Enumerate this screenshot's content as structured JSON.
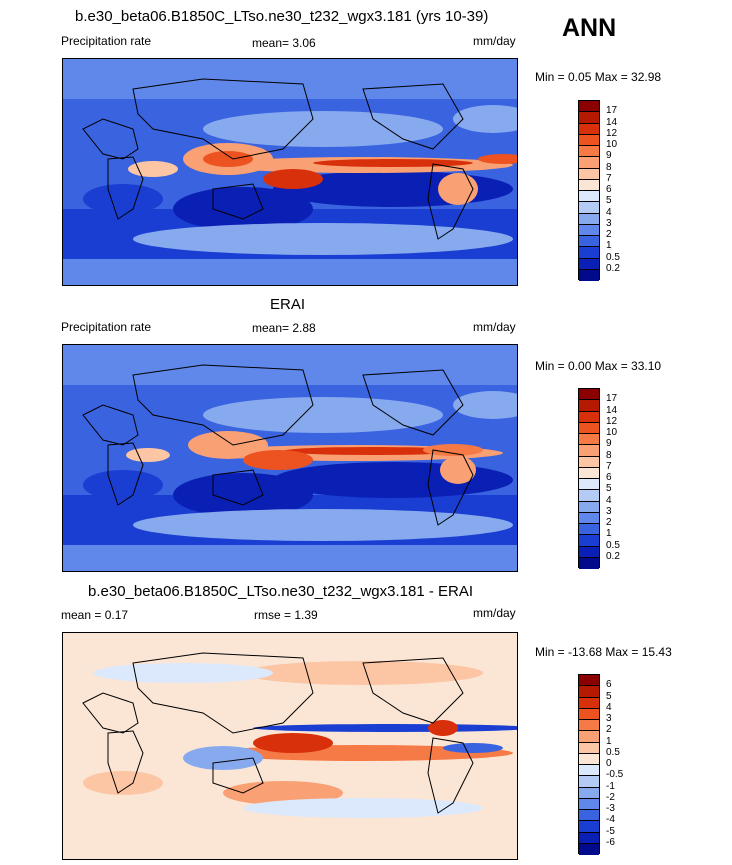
{
  "season": "ANN",
  "panels": [
    {
      "id": "model",
      "title": "b.e30_beta06.B1850C_LTso.ne30_t232_wgx3.181 (yrs 10-39)",
      "left_label": "Precipitation rate",
      "center_label": "mean=   3.06",
      "units": "mm/day",
      "minmax": "Min =   0.05 Max =  32.98",
      "colorbar_labels": [
        "17",
        "14",
        "12",
        "10",
        "9",
        "8",
        "7",
        "6",
        "5",
        "4",
        "3",
        "2",
        "1",
        "0.5",
        "0.2"
      ],
      "colorbar_colors": [
        "#8b0000",
        "#b51a00",
        "#d8300a",
        "#ec5320",
        "#f57a46",
        "#f9a074",
        "#fcc6a4",
        "#fbe6d6",
        "#dce8fb",
        "#b4ccf5",
        "#87aaef",
        "#5f88ea",
        "#3a63e0",
        "#1a3ed2",
        "#0a1fb4",
        "#000a8a"
      ],
      "map_stats": {
        "mean": 3.06,
        "min": 0.05,
        "max": 32.98
      }
    },
    {
      "id": "obs",
      "title": "ERAI",
      "left_label": "Precipitation rate",
      "center_label": "mean=   2.88",
      "units": "mm/day",
      "minmax": "Min =   0.00 Max =  33.10",
      "colorbar_labels": [
        "17",
        "14",
        "12",
        "10",
        "9",
        "8",
        "7",
        "6",
        "5",
        "4",
        "3",
        "2",
        "1",
        "0.5",
        "0.2"
      ],
      "colorbar_colors": [
        "#8b0000",
        "#b51a00",
        "#d8300a",
        "#ec5320",
        "#f57a46",
        "#f9a074",
        "#fcc6a4",
        "#fbe6d6",
        "#dce8fb",
        "#b4ccf5",
        "#87aaef",
        "#5f88ea",
        "#3a63e0",
        "#1a3ed2",
        "#0a1fb4",
        "#000a8a"
      ],
      "map_stats": {
        "mean": 2.88,
        "min": 0.0,
        "max": 33.1
      }
    },
    {
      "id": "diff",
      "title": "b.e30_beta06.B1850C_LTso.ne30_t232_wgx3.181 - ERAI",
      "left_label": "mean =   0.17",
      "center_label": "rmse =   1.39",
      "units": "mm/day",
      "minmax": "Min = -13.68 Max =  15.43",
      "colorbar_labels": [
        "6",
        "5",
        "4",
        "3",
        "2",
        "1",
        "0.5",
        "0",
        "-0.5",
        "-1",
        "-2",
        "-3",
        "-4",
        "-5",
        "-6"
      ],
      "colorbar_colors": [
        "#8b0000",
        "#b51a00",
        "#d8300a",
        "#ec5320",
        "#f57a46",
        "#f9a074",
        "#fcc6a4",
        "#fbe6d6",
        "#dce8fb",
        "#b4ccf5",
        "#87aaef",
        "#5f88ea",
        "#3a63e0",
        "#1a3ed2",
        "#0a1fb4",
        "#000a8a"
      ],
      "map_stats": {
        "mean": 0.17,
        "rmse": 1.39,
        "min": -13.68,
        "max": 15.43
      }
    }
  ],
  "chart_data": [
    {
      "type": "heatmap",
      "title": "b.e30_beta06.B1850C_LTso.ne30_t232_wgx3.181 (yrs 10-39)",
      "variable": "Precipitation rate",
      "units": "mm/day",
      "mean": 3.06,
      "min": 0.05,
      "max": 32.98,
      "levels": [
        0.2,
        0.5,
        1,
        2,
        3,
        4,
        5,
        6,
        7,
        8,
        9,
        10,
        12,
        14,
        17
      ]
    },
    {
      "type": "heatmap",
      "title": "ERAI",
      "variable": "Precipitation rate",
      "units": "mm/day",
      "mean": 2.88,
      "min": 0.0,
      "max": 33.1,
      "levels": [
        0.2,
        0.5,
        1,
        2,
        3,
        4,
        5,
        6,
        7,
        8,
        9,
        10,
        12,
        14,
        17
      ]
    },
    {
      "type": "heatmap",
      "title": "b.e30_beta06.B1850C_LTso.ne30_t232_wgx3.181 - ERAI",
      "units": "mm/day",
      "mean": 0.17,
      "rmse": 1.39,
      "min": -13.68,
      "max": 15.43,
      "levels": [
        -6,
        -5,
        -4,
        -3,
        -2,
        -1,
        -0.5,
        0,
        0.5,
        1,
        2,
        3,
        4,
        5,
        6
      ]
    }
  ]
}
